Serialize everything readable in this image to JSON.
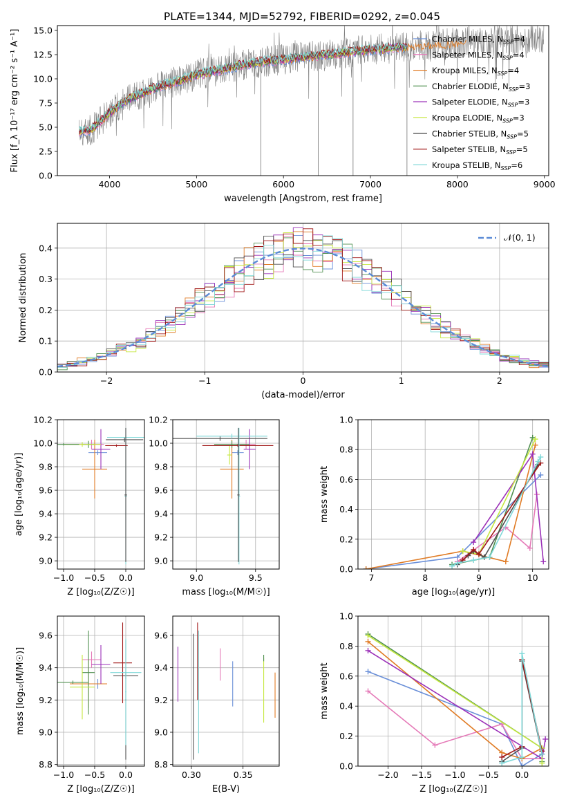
{
  "figure": {
    "title": "PLATE=1344, MJD=52792, FIBERID=0292, z=0.045"
  },
  "colors": {
    "chabrier_miles": "#6a8fd8",
    "salpeter_miles": "#e57ab8",
    "kroupa_miles": "#e07b24",
    "chabrier_elodie": "#4f8f4f",
    "salpeter_elodie": "#9b30b8",
    "kroupa_elodie": "#c6e840",
    "chabrier_stelib": "#505050",
    "salpeter_stelib": "#a01818",
    "kroupa_stelib": "#7fd8d8",
    "data": "#808080",
    "normal": "#5b8bd6"
  },
  "legend": [
    {
      "key": "chabrier_miles",
      "label": "Chabrier MILES, N",
      "sub": "SSP",
      "eq": "=4"
    },
    {
      "key": "salpeter_miles",
      "label": "Salpeter MILES, N",
      "sub": "SSP",
      "eq": "=4"
    },
    {
      "key": "kroupa_miles",
      "label": "Kroupa MILES, N",
      "sub": "SSP",
      "eq": "=4"
    },
    {
      "key": "chabrier_elodie",
      "label": "Chabrier ELODIE, N",
      "sub": "SSP",
      "eq": "=3"
    },
    {
      "key": "salpeter_elodie",
      "label": "Salpeter ELODIE, N",
      "sub": "SSP",
      "eq": "=3"
    },
    {
      "key": "kroupa_elodie",
      "label": "Kroupa ELODIE, N",
      "sub": "SSP",
      "eq": "=3"
    },
    {
      "key": "chabrier_stelib",
      "label": "Chabrier STELIB, N",
      "sub": "SSP",
      "eq": "=5"
    },
    {
      "key": "salpeter_stelib",
      "label": "Salpeter STELIB, N",
      "sub": "SSP",
      "eq": "=5"
    },
    {
      "key": "kroupa_stelib",
      "label": "Kroupa STELIB, N",
      "sub": "SSP",
      "eq": "=6"
    }
  ],
  "chart_data": [
    {
      "id": "spectrum",
      "type": "line",
      "xlabel": "wavelength [Angstrom, rest frame]",
      "ylabel": "Flux [f_λ 10⁻¹⁷ erg cm⁻² s⁻¹ A⁻¹]",
      "xlim": [
        3400,
        9050
      ],
      "ylim": [
        0,
        15.5
      ],
      "xticks": [
        4000,
        5000,
        6000,
        7000,
        8000,
        9000
      ],
      "yticks": [
        0.0,
        2.5,
        5.0,
        7.5,
        10.0,
        12.5,
        15.0
      ],
      "continuum_x": [
        3650,
        3800,
        4000,
        4200,
        4500,
        4800,
        5000,
        5300,
        5500,
        5800,
        6000,
        6300,
        6600,
        7000,
        7400,
        8000,
        8500,
        9000
      ],
      "continuum_y": [
        4.5,
        4.8,
        6.5,
        7.8,
        9.0,
        9.8,
        10.4,
        11.0,
        11.4,
        11.8,
        12.0,
        12.3,
        12.6,
        13.0,
        13.3,
        13.7,
        14.0,
        14.2
      ],
      "data_range": [
        3650,
        9000
      ],
      "model_range": [
        3650,
        7420
      ]
    },
    {
      "id": "residuals",
      "type": "bar",
      "xlabel": "(data-model)/error",
      "ylabel": "Normed distribution",
      "xlim": [
        -2.5,
        2.5
      ],
      "ylim": [
        0,
        0.48
      ],
      "xticks": [
        -2,
        -1,
        0,
        1,
        2
      ],
      "yticks": [
        0.0,
        0.1,
        0.2,
        0.3,
        0.4
      ],
      "bin_width": 0.1,
      "legend_label": "𝒩(0, 1)"
    },
    {
      "id": "age_vs_z",
      "type": "scatter",
      "xlabel": "Z [log₁₀(Z/Z☉)]",
      "ylabel": "age  [log₁₀(age/yr)]",
      "xlim": [
        -1.1,
        0.3
      ],
      "ylim": [
        8.93,
        10.2
      ],
      "xticks": [
        -1.0,
        -0.5,
        0.0
      ],
      "yticks": [
        9.0,
        9.2,
        9.4,
        9.6,
        9.8,
        10.0,
        10.2
      ],
      "points": [
        {
          "key": "chabrier_miles",
          "x": -0.45,
          "xerr": 0.15,
          "y": 9.92,
          "yerr": 0.02
        },
        {
          "key": "salpeter_miles",
          "x": -0.55,
          "xerr": 0.2,
          "y": 9.99,
          "yerr": 0.04
        },
        {
          "key": "kroupa_miles",
          "x": -0.5,
          "xerr": 0.2,
          "y": 9.78,
          "yerr": 0.25
        },
        {
          "key": "chabrier_elodie",
          "x": -0.6,
          "xerr": 0.1,
          "y": 9.99,
          "yerr": 0.03
        },
        {
          "key": "salpeter_elodie",
          "x": -0.4,
          "xerr": 0.15,
          "y": 9.95,
          "yerr": 0.17
        },
        {
          "key": "kroupa_elodie",
          "x": -0.7,
          "xerr": 0.3,
          "y": 9.99,
          "yerr": 0.02
        },
        {
          "key": "chabrier_stelib",
          "x": -0.02,
          "xerr": 0.3,
          "y": 10.03,
          "yerr": 0.02
        },
        {
          "key": "salpeter_stelib",
          "x": -0.15,
          "xerr": 0.18,
          "y": 9.98,
          "yerr": 0.01
        },
        {
          "key": "kroupa_stelib",
          "x": 0.0,
          "xerr": 0.3,
          "y": 10.05,
          "yerr": 0.02
        },
        {
          "key": "chabrier_elodie",
          "x": -1.0,
          "xerr": 0.25,
          "y": 9.99,
          "yerr": 0.01
        },
        {
          "key": "kroupa_stelib",
          "x": 0.0,
          "xerr": 0.02,
          "y": 9.55,
          "yerr": 0.58
        },
        {
          "key": "chabrier_stelib",
          "x": 0.0,
          "xerr": 0.02,
          "y": 9.56,
          "yerr": 0.57
        }
      ]
    },
    {
      "id": "age_vs_mass",
      "type": "scatter",
      "xlabel": "mass [log₁₀(M/M☉)]",
      "ylabel": "",
      "xlim": [
        8.8,
        9.7
      ],
      "ylim": [
        8.93,
        10.2
      ],
      "xticks": [
        9.0,
        9.5
      ],
      "yticks": [
        9.0,
        9.2,
        9.4,
        9.6,
        9.8,
        10.0,
        10.2
      ],
      "points": [
        {
          "key": "chabrier_miles",
          "x": 9.35,
          "xerr": 0.05,
          "y": 9.92,
          "yerr": 0.02
        },
        {
          "key": "salpeter_miles",
          "x": 9.42,
          "xerr": 0.08,
          "y": 9.99,
          "yerr": 0.04
        },
        {
          "key": "kroupa_miles",
          "x": 9.3,
          "xerr": 0.1,
          "y": 9.78,
          "yerr": 0.25
        },
        {
          "key": "chabrier_elodie",
          "x": 9.3,
          "xerr": 0.15,
          "y": 9.99,
          "yerr": 0.03
        },
        {
          "key": "salpeter_elodie",
          "x": 9.45,
          "xerr": 0.05,
          "y": 9.95,
          "yerr": 0.17
        },
        {
          "key": "kroupa_elodie",
          "x": 9.28,
          "xerr": 0.02,
          "y": 9.9,
          "yerr": 0.08
        },
        {
          "key": "chabrier_stelib",
          "x": 9.2,
          "xerr": 0.4,
          "y": 10.04,
          "yerr": 0.02
        },
        {
          "key": "salpeter_stelib",
          "x": 9.35,
          "xerr": 0.3,
          "y": 9.98,
          "yerr": 0.01
        },
        {
          "key": "kroupa_stelib",
          "x": 9.3,
          "xerr": 0.3,
          "y": 10.06,
          "yerr": 0.02
        },
        {
          "key": "kroupa_stelib",
          "x": 9.36,
          "xerr": 0.01,
          "y": 9.55,
          "yerr": 0.58
        },
        {
          "key": "chabrier_stelib",
          "x": 9.355,
          "xerr": 0.01,
          "y": 9.56,
          "yerr": 0.57
        }
      ]
    },
    {
      "id": "weight_vs_age",
      "type": "line",
      "xlabel": "age  [log₁₀(age/yr)]",
      "ylabel": "mass weight",
      "xlim": [
        6.75,
        10.3
      ],
      "ylim": [
        0,
        1.0
      ],
      "xticks": [
        7,
        8,
        9,
        10
      ],
      "yticks": [
        0.0,
        0.2,
        0.4,
        0.6,
        0.8,
        1.0
      ],
      "series": [
        {
          "key": "chabrier_miles",
          "x": [
            6.9,
            8.6,
            10.15
          ],
          "y": [
            0.0,
            0.08,
            0.63
          ]
        },
        {
          "key": "salpeter_miles",
          "x": [
            8.6,
            9.5,
            9.95,
            10.08
          ],
          "y": [
            0.05,
            0.28,
            0.14,
            0.5
          ]
        },
        {
          "key": "kroupa_miles",
          "x": [
            6.9,
            8.7,
            9.5,
            10.05
          ],
          "y": [
            0.0,
            0.12,
            0.05,
            0.83
          ]
        },
        {
          "key": "chabrier_elodie",
          "x": [
            8.5,
            9.2,
            10.0
          ],
          "y": [
            0.03,
            0.08,
            0.88
          ]
        },
        {
          "key": "salpeter_elodie",
          "x": [
            8.9,
            10.0,
            10.2
          ],
          "y": [
            0.18,
            0.77,
            0.05
          ]
        },
        {
          "key": "kroupa_elodie",
          "x": [
            8.7,
            9.0,
            10.05
          ],
          "y": [
            0.12,
            0.1,
            0.87
          ]
        },
        {
          "key": "chabrier_stelib",
          "x": [
            8.6,
            8.8,
            8.9,
            9.1,
            10.1
          ],
          "y": [
            0.03,
            0.09,
            0.12,
            0.08,
            0.7
          ]
        },
        {
          "key": "salpeter_stelib",
          "x": [
            8.7,
            8.9,
            9.0,
            10.15
          ],
          "y": [
            0.06,
            0.13,
            0.1,
            0.71
          ]
        },
        {
          "key": "kroupa_stelib",
          "x": [
            8.5,
            8.6,
            8.9,
            9.2,
            10.1,
            10.15
          ],
          "y": [
            0.02,
            0.04,
            0.06,
            0.08,
            0.72,
            0.75
          ]
        }
      ]
    },
    {
      "id": "mass_vs_z",
      "type": "scatter",
      "xlabel": "Z [log₁₀(Z/Z☉)]",
      "ylabel": "mass [log₁₀(M/M☉)]",
      "xlim": [
        -1.1,
        0.3
      ],
      "ylim": [
        8.79,
        9.72
      ],
      "xticks": [
        -1.0,
        -0.5,
        0.0
      ],
      "yticks": [
        8.8,
        9.0,
        9.2,
        9.4,
        9.6
      ],
      "points": [
        {
          "key": "chabrier_miles",
          "x": -0.45,
          "xerr": 0.15,
          "y": 9.3,
          "yerr": 0.03
        },
        {
          "key": "salpeter_miles",
          "x": -0.55,
          "xerr": 0.15,
          "y": 9.45,
          "yerr": 0.05
        },
        {
          "key": "kroupa_miles",
          "x": -0.6,
          "xerr": 0.3,
          "y": 9.3,
          "yerr": 0.15
        },
        {
          "key": "chabrier_elodie",
          "x": -0.6,
          "xerr": 0.1,
          "y": 9.37,
          "yerr": 0.26
        },
        {
          "key": "salpeter_elodie",
          "x": -0.4,
          "xerr": 0.15,
          "y": 9.42,
          "yerr": 0.12
        },
        {
          "key": "kroupa_elodie",
          "x": -0.7,
          "xerr": 0.2,
          "y": 9.28,
          "yerr": 0.2
        },
        {
          "key": "chabrier_stelib",
          "x": 0.0,
          "xerr": 0.2,
          "y": 9.35,
          "yerr": 0.02
        },
        {
          "key": "salpeter_stelib",
          "x": -0.05,
          "xerr": 0.15,
          "y": 9.43,
          "yerr": 0.25
        },
        {
          "key": "kroupa_stelib",
          "x": 0.0,
          "xerr": 0.25,
          "y": 9.37,
          "yerr": 0.02
        },
        {
          "key": "chabrier_elodie",
          "x": -0.85,
          "xerr": 0.25,
          "y": 9.31,
          "yerr": 0.01
        },
        {
          "key": "chabrier_stelib",
          "x": 0.0,
          "xerr": 0.01,
          "y": 9.2,
          "yerr": 0.37
        },
        {
          "key": "kroupa_stelib",
          "x": 0.0,
          "xerr": 0.01,
          "y": 9.25,
          "yerr": 0.33
        }
      ]
    },
    {
      "id": "mass_vs_ebv",
      "type": "scatter",
      "xlabel": "E(B-V)",
      "ylabel": "",
      "xlim": [
        0.282,
        0.385
      ],
      "ylim": [
        8.79,
        9.72
      ],
      "xticks": [
        0.3,
        0.35
      ],
      "yticks": [
        8.8,
        9.0,
        9.2,
        9.4,
        9.6
      ],
      "points": [
        {
          "key": "salpeter_elodie",
          "x": 0.287,
          "xerr": 0,
          "y": 9.36,
          "yerr": 0.17
        },
        {
          "key": "chabrier_stelib",
          "x": 0.302,
          "xerr": 0,
          "y": 9.22,
          "yerr": 0.39
        },
        {
          "key": "salpeter_stelib",
          "x": 0.306,
          "xerr": 0,
          "y": 9.44,
          "yerr": 0.24
        },
        {
          "key": "kroupa_stelib",
          "x": 0.307,
          "xerr": 0,
          "y": 9.25,
          "yerr": 0.38
        },
        {
          "key": "salpeter_miles",
          "x": 0.328,
          "xerr": 0,
          "y": 9.42,
          "yerr": 0.1
        },
        {
          "key": "chabrier_miles",
          "x": 0.34,
          "xerr": 0,
          "y": 9.3,
          "yerr": 0.14
        },
        {
          "key": "kroupa_elodie",
          "x": 0.37,
          "xerr": 0,
          "y": 9.26,
          "yerr": 0.2
        },
        {
          "key": "chabrier_elodie",
          "x": 0.37,
          "xerr": 0,
          "y": 9.46,
          "yerr": 0.02
        },
        {
          "key": "kroupa_miles",
          "x": 0.381,
          "xerr": 0,
          "y": 9.23,
          "yerr": 0.14
        }
      ]
    },
    {
      "id": "weight_vs_z",
      "type": "line",
      "xlabel": "Z [log₁₀(Z/Z☉)]",
      "ylabel": "mass weight",
      "xlim": [
        -2.45,
        0.4
      ],
      "ylim": [
        0,
        1.0
      ],
      "xticks": [
        -2.0,
        -1.5,
        -1.0,
        -0.5,
        0.0
      ],
      "yticks": [
        0.0,
        0.2,
        0.4,
        0.6,
        0.8,
        1.0
      ],
      "series": [
        {
          "key": "chabrier_miles",
          "x": [
            -2.3,
            -0.3,
            0.0,
            0.3
          ],
          "y": [
            0.63,
            0.28,
            0.0,
            0.08
          ]
        },
        {
          "key": "salpeter_miles",
          "x": [
            -2.3,
            -1.3,
            -0.3,
            0.0,
            0.3
          ],
          "y": [
            0.5,
            0.14,
            0.28,
            0.05,
            0.05
          ]
        },
        {
          "key": "kroupa_miles",
          "x": [
            -2.3,
            -0.3,
            0.0,
            0.3
          ],
          "y": [
            0.83,
            0.09,
            0.05,
            0.12
          ]
        },
        {
          "key": "chabrier_elodie",
          "x": [
            -2.3,
            0.3,
            0.3
          ],
          "y": [
            0.88,
            0.12,
            0.03
          ]
        },
        {
          "key": "salpeter_elodie",
          "x": [
            -2.3,
            0.3,
            0.35
          ],
          "y": [
            0.77,
            0.05,
            0.18
          ]
        },
        {
          "key": "kroupa_elodie",
          "x": [
            -2.3,
            0.3,
            0.3
          ],
          "y": [
            0.87,
            0.12,
            0.02
          ]
        },
        {
          "key": "chabrier_stelib",
          "x": [
            -0.3,
            0.0,
            0.0,
            0.3
          ],
          "y": [
            0.03,
            0.12,
            0.7,
            0.08
          ]
        },
        {
          "key": "salpeter_stelib",
          "x": [
            -0.3,
            0.0,
            0.0,
            0.3
          ],
          "y": [
            0.06,
            0.13,
            0.71,
            0.1
          ]
        },
        {
          "key": "kroupa_stelib",
          "x": [
            -0.3,
            0.0,
            0.0,
            0.3
          ],
          "y": [
            0.02,
            0.06,
            0.75,
            0.08
          ]
        }
      ]
    }
  ]
}
